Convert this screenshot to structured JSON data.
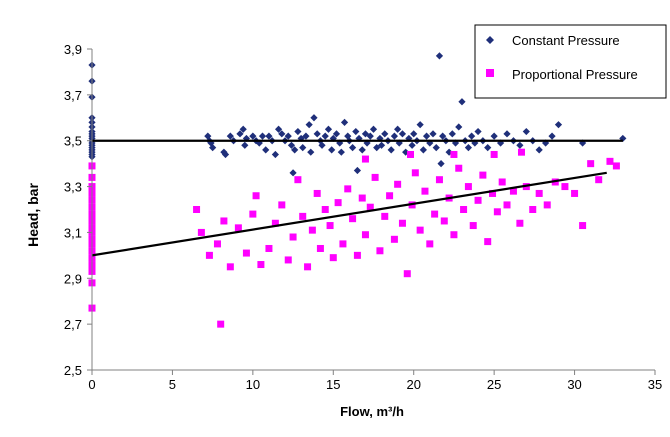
{
  "chart_data": {
    "type": "scatter",
    "xlabel": "Flow, m³/h",
    "ylabel": "Head, bar",
    "xlim": [
      0,
      35
    ],
    "ylim": [
      2.5,
      3.9
    ],
    "x_ticks": [
      "0",
      "5",
      "10",
      "15",
      "20",
      "25",
      "30",
      "35"
    ],
    "y_ticks": [
      "2,5",
      "2,7",
      "2,9",
      "3,1",
      "3,3",
      "3,5",
      "3,7",
      "3,9"
    ],
    "grid": false,
    "legend_position": "top-right",
    "series": [
      {
        "name": "Constant Pressure",
        "marker": "diamond",
        "color": "#1f2f7a",
        "trendline": {
          "x": [
            0,
            33
          ],
          "y": [
            3.5,
            3.5
          ]
        },
        "points": [
          [
            0,
            3.83
          ],
          [
            0,
            3.76
          ],
          [
            0,
            3.69
          ],
          [
            0,
            3.6
          ],
          [
            0,
            3.58
          ],
          [
            0,
            3.56
          ],
          [
            0,
            3.54
          ],
          [
            0,
            3.53
          ],
          [
            0,
            3.52
          ],
          [
            0,
            3.51
          ],
          [
            0,
            3.5
          ],
          [
            0,
            3.49
          ],
          [
            0,
            3.48
          ],
          [
            0,
            3.47
          ],
          [
            0,
            3.46
          ],
          [
            0,
            3.45
          ],
          [
            0,
            3.44
          ],
          [
            0,
            3.43
          ],
          [
            7.2,
            3.52
          ],
          [
            7.3,
            3.5
          ],
          [
            7.4,
            3.49
          ],
          [
            7.5,
            3.47
          ],
          [
            8.2,
            3.45
          ],
          [
            8.3,
            3.44
          ],
          [
            8.6,
            3.52
          ],
          [
            8.8,
            3.5
          ],
          [
            9.2,
            3.53
          ],
          [
            9.4,
            3.55
          ],
          [
            9.5,
            3.48
          ],
          [
            9.6,
            3.51
          ],
          [
            10.0,
            3.52
          ],
          [
            10.2,
            3.5
          ],
          [
            10.4,
            3.49
          ],
          [
            10.6,
            3.52
          ],
          [
            10.8,
            3.46
          ],
          [
            11.0,
            3.52
          ],
          [
            11.2,
            3.5
          ],
          [
            11.4,
            3.44
          ],
          [
            11.6,
            3.55
          ],
          [
            11.8,
            3.53
          ],
          [
            12.0,
            3.5
          ],
          [
            12.2,
            3.52
          ],
          [
            12.4,
            3.48
          ],
          [
            12.6,
            3.46
          ],
          [
            12.8,
            3.54
          ],
          [
            13.0,
            3.51
          ],
          [
            13.1,
            3.47
          ],
          [
            13.3,
            3.52
          ],
          [
            13.5,
            3.57
          ],
          [
            13.6,
            3.45
          ],
          [
            13.8,
            3.6
          ],
          [
            14.0,
            3.53
          ],
          [
            14.2,
            3.5
          ],
          [
            14.3,
            3.48
          ],
          [
            14.5,
            3.52
          ],
          [
            14.7,
            3.55
          ],
          [
            14.9,
            3.46
          ],
          [
            15.0,
            3.51
          ],
          [
            15.2,
            3.53
          ],
          [
            15.4,
            3.49
          ],
          [
            15.5,
            3.45
          ],
          [
            15.7,
            3.58
          ],
          [
            15.9,
            3.52
          ],
          [
            16.0,
            3.5
          ],
          [
            16.2,
            3.47
          ],
          [
            16.4,
            3.54
          ],
          [
            16.6,
            3.51
          ],
          [
            16.8,
            3.46
          ],
          [
            17.0,
            3.53
          ],
          [
            17.1,
            3.49
          ],
          [
            17.3,
            3.52
          ],
          [
            17.5,
            3.55
          ],
          [
            17.7,
            3.47
          ],
          [
            17.9,
            3.51
          ],
          [
            18.0,
            3.48
          ],
          [
            18.2,
            3.53
          ],
          [
            18.4,
            3.5
          ],
          [
            18.6,
            3.46
          ],
          [
            18.8,
            3.52
          ],
          [
            19.0,
            3.55
          ],
          [
            19.1,
            3.49
          ],
          [
            19.3,
            3.53
          ],
          [
            19.5,
            3.45
          ],
          [
            19.7,
            3.51
          ],
          [
            19.9,
            3.48
          ],
          [
            20.0,
            3.53
          ],
          [
            20.2,
            3.5
          ],
          [
            20.4,
            3.57
          ],
          [
            20.6,
            3.46
          ],
          [
            20.8,
            3.52
          ],
          [
            21.0,
            3.49
          ],
          [
            21.2,
            3.53
          ],
          [
            21.4,
            3.47
          ],
          [
            21.6,
            3.87
          ],
          [
            21.8,
            3.52
          ],
          [
            22.0,
            3.5
          ],
          [
            22.2,
            3.45
          ],
          [
            22.4,
            3.53
          ],
          [
            22.6,
            3.49
          ],
          [
            22.8,
            3.56
          ],
          [
            23.0,
            3.67
          ],
          [
            23.2,
            3.5
          ],
          [
            23.4,
            3.47
          ],
          [
            23.6,
            3.52
          ],
          [
            23.8,
            3.49
          ],
          [
            24.0,
            3.54
          ],
          [
            24.3,
            3.5
          ],
          [
            24.6,
            3.47
          ],
          [
            25.0,
            3.52
          ],
          [
            25.4,
            3.49
          ],
          [
            25.8,
            3.53
          ],
          [
            26.2,
            3.5
          ],
          [
            26.6,
            3.48
          ],
          [
            27.0,
            3.54
          ],
          [
            27.4,
            3.5
          ],
          [
            27.8,
            3.46
          ],
          [
            28.2,
            3.49
          ],
          [
            28.6,
            3.52
          ],
          [
            29.0,
            3.57
          ],
          [
            30.5,
            3.49
          ],
          [
            33.0,
            3.51
          ],
          [
            12.5,
            3.36
          ],
          [
            21.7,
            3.4
          ],
          [
            16.5,
            3.37
          ]
        ]
      },
      {
        "name": "Proportional Pressure",
        "marker": "square",
        "color": "#ff00ff",
        "trendline": {
          "x": [
            0,
            32
          ],
          "y": [
            3.0,
            3.36
          ]
        },
        "points": [
          [
            0,
            3.39
          ],
          [
            0,
            3.34
          ],
          [
            0,
            3.3
          ],
          [
            0,
            3.27
          ],
          [
            0,
            3.24
          ],
          [
            0,
            3.21
          ],
          [
            0,
            3.18
          ],
          [
            0,
            3.15
          ],
          [
            0,
            3.12
          ],
          [
            0,
            3.1
          ],
          [
            0,
            3.07
          ],
          [
            0,
            3.05
          ],
          [
            0,
            3.02
          ],
          [
            0,
            2.99
          ],
          [
            0,
            2.96
          ],
          [
            0,
            2.93
          ],
          [
            0,
            2.88
          ],
          [
            0,
            2.77
          ],
          [
            8.0,
            2.7
          ],
          [
            6.5,
            3.2
          ],
          [
            6.8,
            3.1
          ],
          [
            7.3,
            3.0
          ],
          [
            7.8,
            3.05
          ],
          [
            8.2,
            3.15
          ],
          [
            8.6,
            2.95
          ],
          [
            9.1,
            3.12
          ],
          [
            9.6,
            3.01
          ],
          [
            10.0,
            3.18
          ],
          [
            10.2,
            3.26
          ],
          [
            10.5,
            2.96
          ],
          [
            11.0,
            3.03
          ],
          [
            11.4,
            3.14
          ],
          [
            11.8,
            3.22
          ],
          [
            12.2,
            2.98
          ],
          [
            12.5,
            3.08
          ],
          [
            12.8,
            3.33
          ],
          [
            13.1,
            3.17
          ],
          [
            13.4,
            2.95
          ],
          [
            13.7,
            3.11
          ],
          [
            14.0,
            3.27
          ],
          [
            14.2,
            3.03
          ],
          [
            14.5,
            3.2
          ],
          [
            14.8,
            3.13
          ],
          [
            15.0,
            2.99
          ],
          [
            15.3,
            3.23
          ],
          [
            15.6,
            3.05
          ],
          [
            15.9,
            3.29
          ],
          [
            16.2,
            3.16
          ],
          [
            16.5,
            3.0
          ],
          [
            16.8,
            3.25
          ],
          [
            17.0,
            3.09
          ],
          [
            17.3,
            3.21
          ],
          [
            17.6,
            3.34
          ],
          [
            17.9,
            3.02
          ],
          [
            18.2,
            3.17
          ],
          [
            18.5,
            3.26
          ],
          [
            18.8,
            3.07
          ],
          [
            19.0,
            3.31
          ],
          [
            19.3,
            3.14
          ],
          [
            19.6,
            2.92
          ],
          [
            19.9,
            3.22
          ],
          [
            20.1,
            3.36
          ],
          [
            20.4,
            3.11
          ],
          [
            20.7,
            3.28
          ],
          [
            21.0,
            3.05
          ],
          [
            21.3,
            3.18
          ],
          [
            21.6,
            3.33
          ],
          [
            21.9,
            3.15
          ],
          [
            22.2,
            3.25
          ],
          [
            22.5,
            3.09
          ],
          [
            22.8,
            3.38
          ],
          [
            23.1,
            3.2
          ],
          [
            23.4,
            3.3
          ],
          [
            23.7,
            3.13
          ],
          [
            24.0,
            3.24
          ],
          [
            24.3,
            3.35
          ],
          [
            24.6,
            3.06
          ],
          [
            24.9,
            3.27
          ],
          [
            25.2,
            3.19
          ],
          [
            25.5,
            3.32
          ],
          [
            25.8,
            3.22
          ],
          [
            26.2,
            3.28
          ],
          [
            26.6,
            3.14
          ],
          [
            27.0,
            3.3
          ],
          [
            27.4,
            3.2
          ],
          [
            27.8,
            3.27
          ],
          [
            28.3,
            3.22
          ],
          [
            28.8,
            3.32
          ],
          [
            29.4,
            3.3
          ],
          [
            30.0,
            3.27
          ],
          [
            30.5,
            3.13
          ],
          [
            31.0,
            3.4
          ],
          [
            31.5,
            3.33
          ],
          [
            32.2,
            3.41
          ],
          [
            32.6,
            3.39
          ],
          [
            17.0,
            3.42
          ],
          [
            19.8,
            3.44
          ],
          [
            22.5,
            3.44
          ],
          [
            25.0,
            3.44
          ],
          [
            26.7,
            3.45
          ]
        ]
      }
    ]
  }
}
